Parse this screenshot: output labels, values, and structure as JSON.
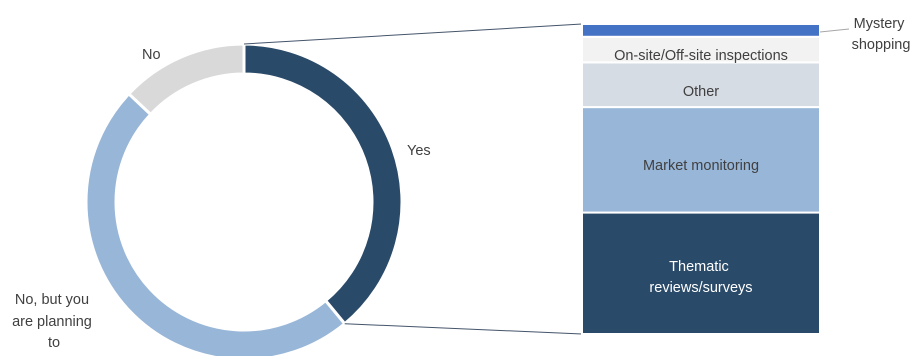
{
  "chart_data": [
    {
      "type": "pie",
      "variant": "doughnut",
      "categories": [
        "Yes",
        "No, but you are planning to",
        "No"
      ],
      "values": [
        39,
        48,
        13
      ],
      "colors": [
        "#2a4a69",
        "#98b6d8",
        "#d9d9d9"
      ],
      "labels": {
        "yes": "Yes",
        "no_planning": [
          "No, but you",
          "are planning",
          "to"
        ],
        "no": "No"
      }
    },
    {
      "type": "bar",
      "variant": "stacked-100",
      "categories": [
        "Thematic reviews/surveys",
        "Market monitoring",
        "Other",
        "On-site/Off-site inspections",
        "Mystery shopping"
      ],
      "values": [
        38,
        33,
        14,
        8,
        4
      ],
      "colors": [
        "#2a4a69",
        "#98b6d8",
        "#d6dce4",
        "#f2f2f2",
        "#4472c4"
      ],
      "label_colors": [
        "#ffffff",
        "#404040",
        "#404040",
        "#404040",
        "#404040"
      ],
      "labels": {
        "thematic": [
          "Thematic",
          "reviews/surveys"
        ],
        "market": "Market monitoring",
        "other": "Other",
        "inspections": "On-site/Off-site inspections",
        "mystery": [
          "Mystery",
          "shopping"
        ]
      }
    }
  ]
}
